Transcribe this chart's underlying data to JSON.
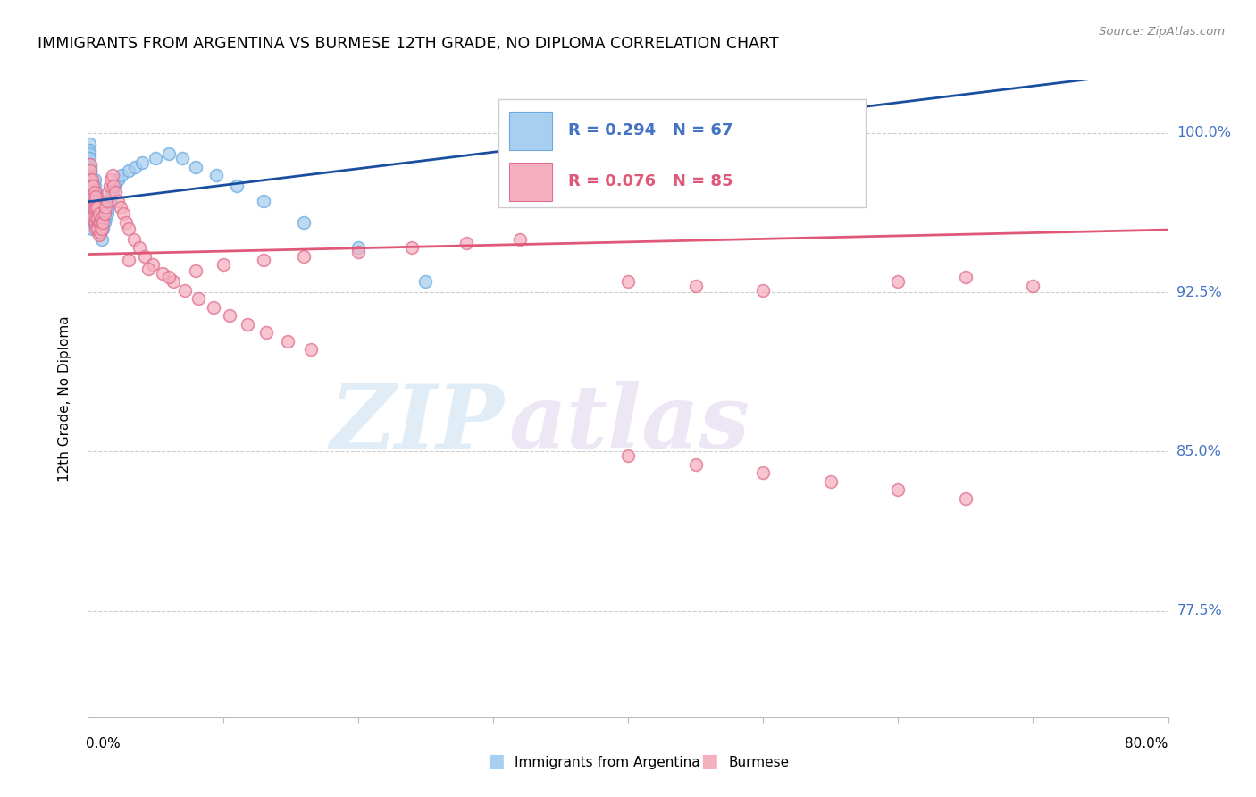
{
  "title": "IMMIGRANTS FROM ARGENTINA VS BURMESE 12TH GRADE, NO DIPLOMA CORRELATION CHART",
  "source_text": "Source: ZipAtlas.com",
  "ylabel": "12th Grade, No Diploma",
  "yticks": [
    0.775,
    0.85,
    0.925,
    1.0
  ],
  "ytick_labels": [
    "77.5%",
    "85.0%",
    "92.5%",
    "100.0%"
  ],
  "xlim": [
    0.0,
    0.8
  ],
  "ylim": [
    0.725,
    1.025
  ],
  "argentina_color": "#a8cff0",
  "argentina_edge": "#6aaae0",
  "burmese_color": "#f5b0c0",
  "burmese_edge": "#e07090",
  "trend_argentina_color": "#1a4fa0",
  "trend_burmese_color": "#e05878",
  "R_argentina": 0.294,
  "N_argentina": 67,
  "R_burmese": 0.076,
  "N_burmese": 85,
  "legend_label_argentina": "Immigrants from Argentina",
  "legend_label_burmese": "Burmese",
  "watermark_zip": "ZIP",
  "watermark_atlas": "atlas",
  "label_color": "#4472c4",
  "legend_text_color_arg": "#4472c4",
  "legend_text_color_bur": "#e05878",
  "argentina_x": [
    0.001,
    0.001,
    0.001,
    0.001,
    0.001,
    0.002,
    0.002,
    0.002,
    0.002,
    0.002,
    0.002,
    0.002,
    0.003,
    0.003,
    0.003,
    0.003,
    0.003,
    0.003,
    0.004,
    0.004,
    0.004,
    0.004,
    0.005,
    0.005,
    0.005,
    0.005,
    0.005,
    0.005,
    0.006,
    0.006,
    0.006,
    0.006,
    0.007,
    0.007,
    0.007,
    0.008,
    0.008,
    0.008,
    0.009,
    0.009,
    0.01,
    0.01,
    0.01,
    0.011,
    0.012,
    0.013,
    0.014,
    0.015,
    0.016,
    0.017,
    0.018,
    0.02,
    0.022,
    0.025,
    0.03,
    0.035,
    0.04,
    0.05,
    0.06,
    0.07,
    0.08,
    0.095,
    0.11,
    0.13,
    0.16,
    0.2,
    0.25
  ],
  "argentina_y": [
    0.995,
    0.992,
    0.99,
    0.988,
    0.985,
    0.984,
    0.982,
    0.98,
    0.978,
    0.975,
    0.972,
    0.97,
    0.975,
    0.97,
    0.965,
    0.96,
    0.958,
    0.955,
    0.972,
    0.968,
    0.965,
    0.96,
    0.978,
    0.975,
    0.97,
    0.965,
    0.962,
    0.958,
    0.972,
    0.968,
    0.964,
    0.958,
    0.968,
    0.964,
    0.96,
    0.965,
    0.96,
    0.955,
    0.958,
    0.953,
    0.96,
    0.955,
    0.95,
    0.955,
    0.958,
    0.96,
    0.962,
    0.965,
    0.968,
    0.97,
    0.972,
    0.975,
    0.978,
    0.98,
    0.982,
    0.984,
    0.986,
    0.988,
    0.99,
    0.988,
    0.984,
    0.98,
    0.975,
    0.968,
    0.958,
    0.946,
    0.93
  ],
  "burmese_x": [
    0.001,
    0.001,
    0.002,
    0.002,
    0.002,
    0.002,
    0.003,
    0.003,
    0.003,
    0.003,
    0.003,
    0.004,
    0.004,
    0.004,
    0.004,
    0.005,
    0.005,
    0.005,
    0.005,
    0.006,
    0.006,
    0.006,
    0.006,
    0.007,
    0.007,
    0.007,
    0.008,
    0.008,
    0.008,
    0.009,
    0.009,
    0.01,
    0.01,
    0.011,
    0.012,
    0.013,
    0.014,
    0.015,
    0.016,
    0.017,
    0.018,
    0.019,
    0.02,
    0.022,
    0.024,
    0.026,
    0.028,
    0.03,
    0.034,
    0.038,
    0.042,
    0.048,
    0.055,
    0.063,
    0.072,
    0.082,
    0.093,
    0.105,
    0.118,
    0.132,
    0.148,
    0.165,
    0.03,
    0.045,
    0.06,
    0.08,
    0.1,
    0.13,
    0.16,
    0.2,
    0.24,
    0.28,
    0.32,
    0.4,
    0.45,
    0.5,
    0.6,
    0.65,
    0.7,
    0.4,
    0.45,
    0.5,
    0.55,
    0.6,
    0.65
  ],
  "burmese_y": [
    0.98,
    0.975,
    0.985,
    0.982,
    0.978,
    0.972,
    0.978,
    0.975,
    0.97,
    0.965,
    0.962,
    0.975,
    0.97,
    0.965,
    0.96,
    0.972,
    0.968,
    0.964,
    0.958,
    0.97,
    0.965,
    0.96,
    0.955,
    0.965,
    0.96,
    0.955,
    0.962,
    0.958,
    0.952,
    0.958,
    0.953,
    0.96,
    0.955,
    0.958,
    0.962,
    0.965,
    0.968,
    0.972,
    0.975,
    0.978,
    0.98,
    0.975,
    0.972,
    0.968,
    0.965,
    0.962,
    0.958,
    0.955,
    0.95,
    0.946,
    0.942,
    0.938,
    0.934,
    0.93,
    0.926,
    0.922,
    0.918,
    0.914,
    0.91,
    0.906,
    0.902,
    0.898,
    0.94,
    0.936,
    0.932,
    0.935,
    0.938,
    0.94,
    0.942,
    0.944,
    0.946,
    0.948,
    0.95,
    0.93,
    0.928,
    0.926,
    0.93,
    0.932,
    0.928,
    0.848,
    0.844,
    0.84,
    0.836,
    0.832,
    0.828
  ]
}
